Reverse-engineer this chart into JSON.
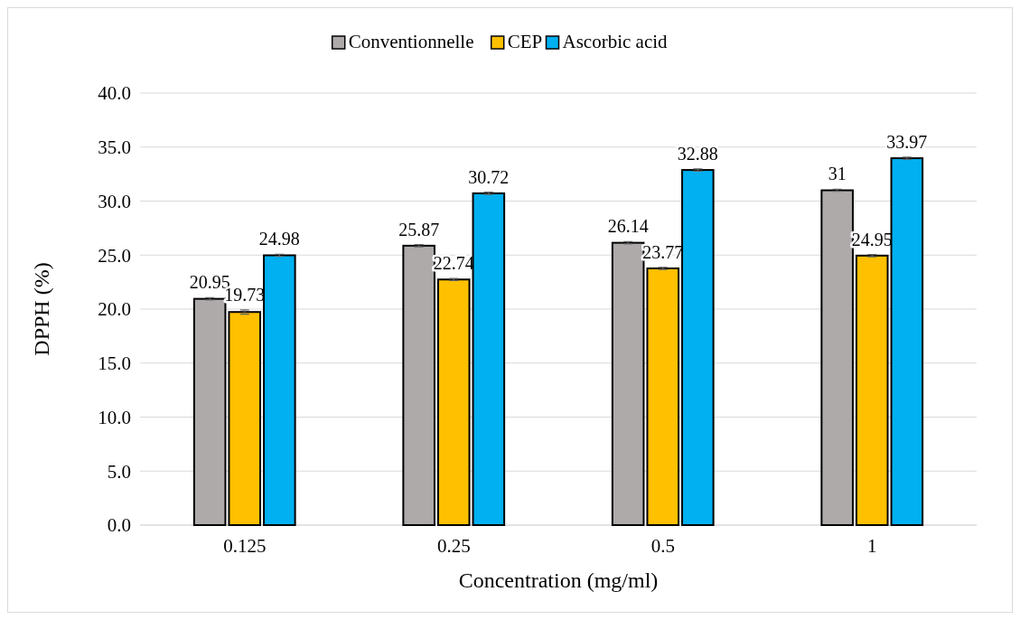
{
  "chart_data": {
    "type": "bar",
    "xlabel": "Concentration (mg/ml)",
    "ylabel": "DPPH (%)",
    "categories": [
      "0.125",
      "0.25",
      "0.5",
      "1"
    ],
    "series": [
      {
        "name": "Conventionnelle",
        "color": "#aeaaaa",
        "values": [
          20.95,
          25.87,
          26.14,
          31
        ],
        "errors": [
          0.1,
          0.1,
          0.1,
          0.1
        ]
      },
      {
        "name": "CEP",
        "color": "#ffc000",
        "values": [
          19.73,
          22.74,
          23.77,
          24.95
        ],
        "errors": [
          0.2,
          0.1,
          0.1,
          0.1
        ]
      },
      {
        "name": "Ascorbic acid",
        "color": "#00b0f0",
        "values": [
          24.98,
          30.72,
          32.88,
          33.97
        ],
        "errors": [
          0.1,
          0.1,
          0.1,
          0.1
        ]
      }
    ],
    "ylim": [
      0,
      40
    ],
    "yticks": [
      {
        "value": 0,
        "label": "0.0"
      },
      {
        "value": 5,
        "label": "5.0"
      },
      {
        "value": 10,
        "label": "10.0"
      },
      {
        "value": 15,
        "label": "15.0"
      },
      {
        "value": 20,
        "label": "20.0"
      },
      {
        "value": 25,
        "label": "25.0"
      },
      {
        "value": 30,
        "label": "30.0"
      },
      {
        "value": 35,
        "label": "35.0"
      },
      {
        "value": 40,
        "label": "40.0"
      }
    ],
    "grid": "y",
    "legend": "top",
    "data_labels": true
  }
}
